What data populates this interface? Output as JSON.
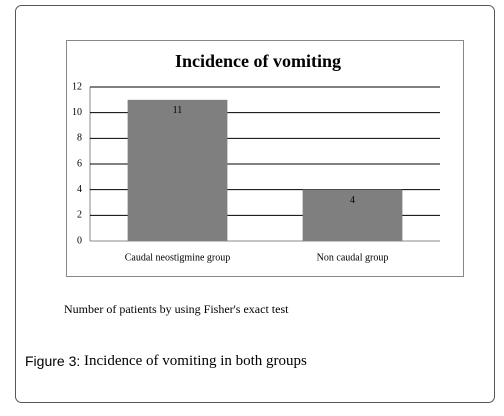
{
  "chart_data": {
    "type": "bar",
    "title": "Incidence of vomiting",
    "categories": [
      "Caudal neostigmine group",
      "Non caudal group"
    ],
    "values": [
      11,
      4
    ],
    "color": "#7f7f7f",
    "ylim": [
      0,
      12
    ],
    "yticks": [
      0,
      2,
      4,
      6,
      8,
      10,
      12
    ],
    "grid": true
  },
  "note": "Number of patients by using Fisher's exact test",
  "caption": {
    "label": "Figure 3:",
    "text": "Incidence of vomiting in both groups"
  }
}
